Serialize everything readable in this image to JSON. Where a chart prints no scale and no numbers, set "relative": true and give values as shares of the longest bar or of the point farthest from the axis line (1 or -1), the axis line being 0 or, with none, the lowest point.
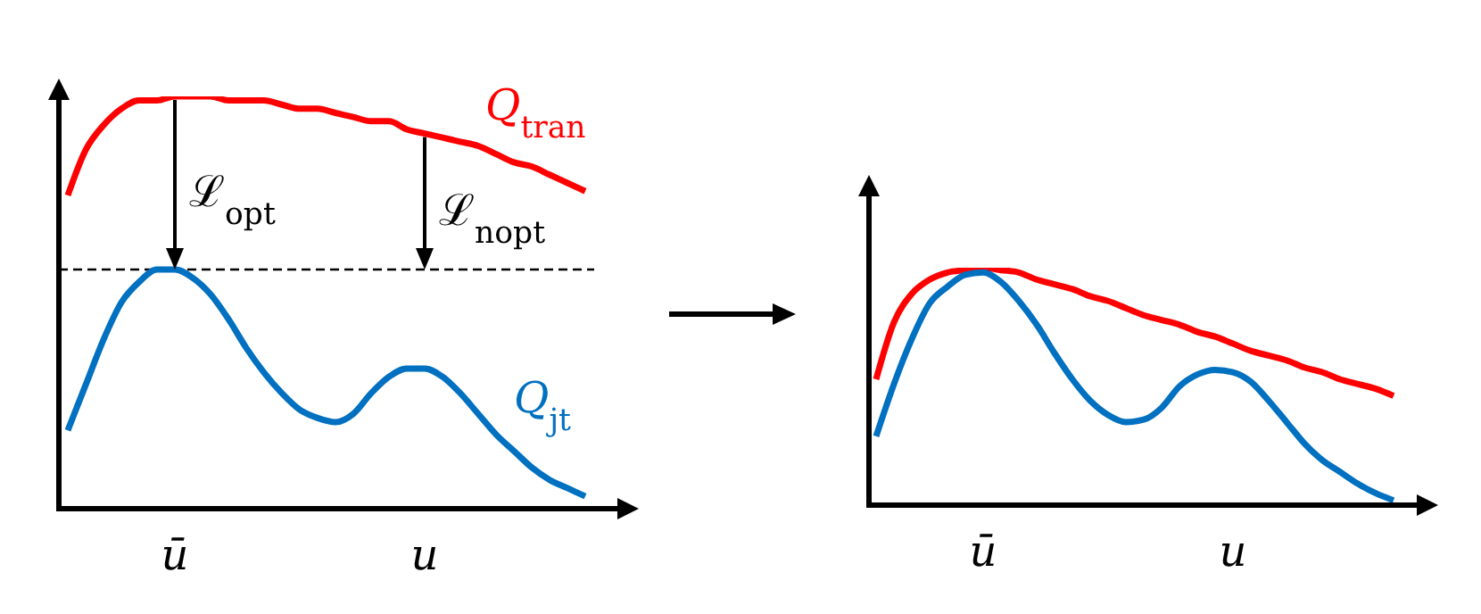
{
  "chart_data": [
    {
      "type": "line",
      "relative": true,
      "marker": "none",
      "line_style": "solid",
      "categories": [
        null,
        null,
        null,
        null,
        null,
        null,
        "ū",
        null,
        null,
        null,
        null,
        null,
        null,
        null,
        null,
        null,
        null,
        null,
        null,
        null,
        "u",
        null,
        null,
        null,
        null,
        null,
        null,
        null,
        null,
        null
      ],
      "series": [
        {
          "name": "Q$_{tran}$",
          "color": "#ff0000",
          "values": [
            0.76,
            0.87,
            0.93,
            0.97,
            0.99,
            0.99,
            1,
            1,
            1,
            0.99,
            0.99,
            0.99,
            0.98,
            0.97,
            0.97,
            0.96,
            0.95,
            0.94,
            0.94,
            0.92,
            0.91,
            0.9,
            0.89,
            0.88,
            0.86,
            0.84,
            0.83,
            0.81,
            0.79,
            0.77
          ]
        },
        {
          "name": "Q$_{jt}$",
          "color": "#0070c0",
          "values": [
            0.19,
            0.3,
            0.41,
            0.5,
            0.55,
            0.58,
            0.58,
            0.56,
            0.52,
            0.46,
            0.39,
            0.33,
            0.28,
            0.24,
            0.22,
            0.21,
            0.23,
            0.28,
            0.32,
            0.34,
            0.34,
            0.32,
            0.28,
            0.23,
            0.18,
            0.14,
            0.1,
            0.07,
            0.05,
            0.03
          ]
        }
      ],
      "ref_lines": [
        {
          "axis": "y",
          "value": 0.58,
          "color": "#000000",
          "line_style": "dashed"
        }
      ],
      "annotations": [
        {
          "text": "ℒ$_{opt}$",
          "x": "ū",
          "y": 0.58
        },
        {
          "text": "ℒ$_{nopt}$",
          "x": "u",
          "y": 0.58
        }
      ]
    },
    {
      "type": "line",
      "relative": true,
      "marker": "none",
      "line_style": "solid",
      "categories": [
        null,
        null,
        null,
        null,
        null,
        null,
        "ū",
        null,
        null,
        null,
        null,
        null,
        null,
        null,
        null,
        null,
        null,
        null,
        null,
        null,
        "u",
        null,
        null,
        null,
        null,
        null,
        null,
        null,
        null,
        null
      ],
      "series": [
        {
          "color": "#ff0000",
          "values": [
            0.53,
            0.77,
            0.89,
            0.95,
            0.98,
            0.99,
            1,
            0.99,
            0.98,
            0.95,
            0.93,
            0.91,
            0.88,
            0.86,
            0.83,
            0.8,
            0.78,
            0.76,
            0.73,
            0.71,
            0.68,
            0.65,
            0.63,
            0.61,
            0.58,
            0.56,
            0.53,
            0.51,
            0.49,
            0.46
          ]
        },
        {
          "color": "#0070c0",
          "values": [
            0.29,
            0.51,
            0.7,
            0.85,
            0.92,
            0.97,
            0.98,
            0.94,
            0.86,
            0.76,
            0.64,
            0.53,
            0.44,
            0.38,
            0.35,
            0.36,
            0.41,
            0.5,
            0.55,
            0.57,
            0.56,
            0.52,
            0.44,
            0.35,
            0.26,
            0.19,
            0.14,
            0.09,
            0.05,
            0.02
          ]
        }
      ]
    }
  ]
}
